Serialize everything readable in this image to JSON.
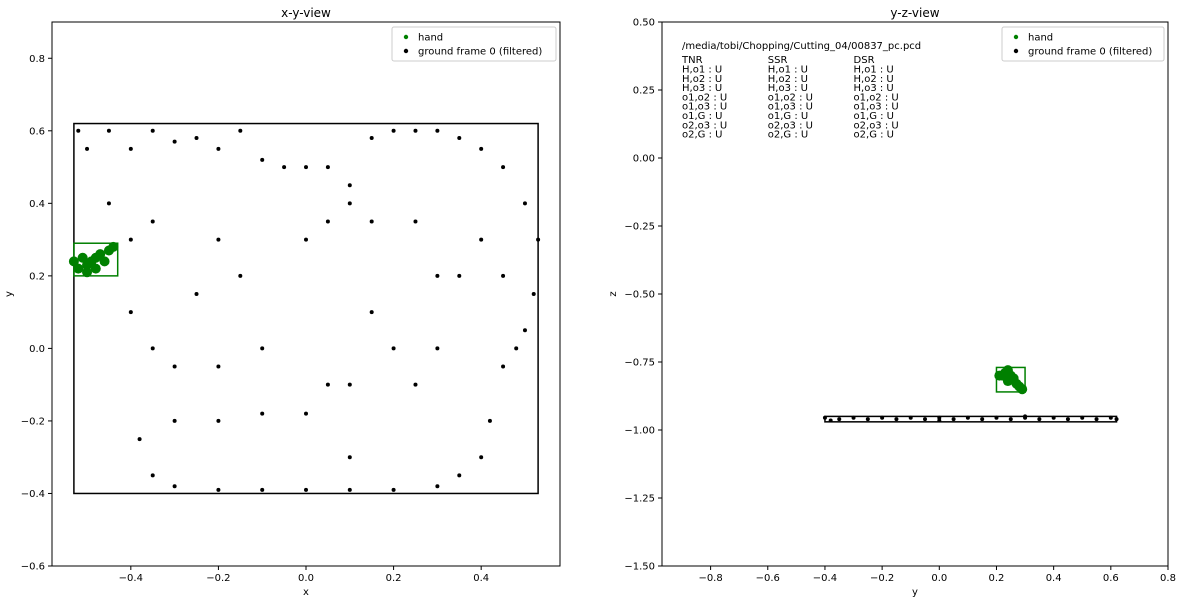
{
  "chart_data": [
    {
      "type": "scatter",
      "title": "x-y-view",
      "xlabel": "x",
      "ylabel": "y",
      "xlim": [
        -0.58,
        0.58
      ],
      "ylim": [
        -0.6,
        0.9
      ],
      "xticks": [
        -0.4,
        -0.2,
        0.0,
        0.2,
        0.4
      ],
      "xtick_labels": [
        "−0.4",
        "−0.2",
        "0.0",
        "0.2",
        "0.4"
      ],
      "yticks": [
        -0.6,
        -0.4,
        -0.2,
        0.0,
        0.2,
        0.4,
        0.6,
        0.8
      ],
      "ytick_labels": [
        "−0.6",
        "−0.4",
        "−0.2",
        "0.0",
        "0.2",
        "0.4",
        "0.6",
        "0.8"
      ],
      "legend_position": "top-right",
      "series": [
        {
          "name": "hand",
          "color": "#008000",
          "points": [
            [
              -0.53,
              0.24
            ],
            [
              -0.52,
              0.22
            ],
            [
              -0.51,
              0.25
            ],
            [
              -0.5,
              0.23
            ],
            [
              -0.49,
              0.24
            ],
            [
              -0.48,
              0.22
            ],
            [
              -0.47,
              0.26
            ],
            [
              -0.46,
              0.24
            ],
            [
              -0.45,
              0.27
            ],
            [
              -0.44,
              0.28
            ],
            [
              -0.5,
              0.21
            ],
            [
              -0.48,
              0.25
            ]
          ]
        },
        {
          "name": "ground frame 0 (filtered)",
          "color": "#000000",
          "points": [
            [
              -0.52,
              0.6
            ],
            [
              -0.5,
              0.55
            ],
            [
              -0.45,
              0.6
            ],
            [
              -0.4,
              0.55
            ],
            [
              -0.35,
              0.6
            ],
            [
              -0.3,
              0.57
            ],
            [
              -0.25,
              0.58
            ],
            [
              -0.2,
              0.55
            ],
            [
              -0.15,
              0.6
            ],
            [
              -0.1,
              0.52
            ],
            [
              -0.05,
              0.5
            ],
            [
              0.0,
              0.5
            ],
            [
              0.05,
              0.5
            ],
            [
              0.1,
              0.45
            ],
            [
              0.15,
              0.58
            ],
            [
              0.2,
              0.6
            ],
            [
              0.25,
              0.6
            ],
            [
              0.3,
              0.6
            ],
            [
              0.35,
              0.58
            ],
            [
              0.4,
              0.55
            ],
            [
              0.45,
              0.5
            ],
            [
              0.5,
              0.4
            ],
            [
              0.53,
              0.3
            ],
            [
              0.52,
              0.15
            ],
            [
              0.5,
              0.05
            ],
            [
              0.48,
              0.0
            ],
            [
              0.45,
              -0.05
            ],
            [
              0.42,
              -0.2
            ],
            [
              0.4,
              -0.3
            ],
            [
              0.35,
              -0.35
            ],
            [
              0.3,
              -0.38
            ],
            [
              0.2,
              -0.39
            ],
            [
              0.1,
              -0.39
            ],
            [
              0.0,
              -0.39
            ],
            [
              -0.1,
              -0.39
            ],
            [
              -0.2,
              -0.39
            ],
            [
              -0.3,
              -0.38
            ],
            [
              -0.35,
              -0.35
            ],
            [
              -0.38,
              -0.25
            ],
            [
              -0.3,
              -0.2
            ],
            [
              -0.2,
              -0.2
            ],
            [
              -0.1,
              -0.18
            ],
            [
              0.0,
              -0.18
            ],
            [
              0.05,
              -0.1
            ],
            [
              0.1,
              -0.1
            ],
            [
              -0.45,
              0.4
            ],
            [
              -0.4,
              0.3
            ],
            [
              -0.35,
              0.0
            ],
            [
              -0.3,
              -0.05
            ],
            [
              -0.2,
              -0.05
            ],
            [
              -0.1,
              0.0
            ],
            [
              0.0,
              0.3
            ],
            [
              0.05,
              0.35
            ],
            [
              0.1,
              0.4
            ],
            [
              0.15,
              0.35
            ],
            [
              0.25,
              0.35
            ],
            [
              0.3,
              0.2
            ],
            [
              0.35,
              0.2
            ],
            [
              0.4,
              0.3
            ],
            [
              0.45,
              0.2
            ],
            [
              0.3,
              0.0
            ],
            [
              0.25,
              -0.1
            ],
            [
              -0.2,
              0.3
            ],
            [
              -0.15,
              0.2
            ],
            [
              -0.25,
              0.15
            ],
            [
              -0.35,
              0.35
            ],
            [
              -0.4,
              0.1
            ],
            [
              0.15,
              0.1
            ],
            [
              0.2,
              0.0
            ],
            [
              0.1,
              -0.3
            ]
          ]
        }
      ],
      "rectangles": [
        {
          "color": "#000000",
          "x0": -0.53,
          "y0": -0.4,
          "x1": 0.53,
          "y1": 0.62
        },
        {
          "color": "#008000",
          "x0": -0.53,
          "y0": 0.2,
          "x1": -0.43,
          "y1": 0.29
        }
      ]
    },
    {
      "type": "scatter",
      "title": "y-z-view",
      "xlabel": "y",
      "ylabel": "z",
      "xlim": [
        -0.97,
        0.8
      ],
      "ylim": [
        -1.5,
        0.5
      ],
      "xticks": [
        -0.8,
        -0.6,
        -0.4,
        -0.2,
        0.0,
        0.2,
        0.4,
        0.6,
        0.8
      ],
      "xtick_labels": [
        "−0.8",
        "−0.6",
        "−0.4",
        "−0.2",
        "0.0",
        "0.2",
        "0.4",
        "0.6",
        "0.8"
      ],
      "yticks": [
        -1.5,
        -1.25,
        -1.0,
        -0.75,
        -0.5,
        -0.25,
        0.0,
        0.25,
        0.5
      ],
      "ytick_labels": [
        "−1.50",
        "−1.25",
        "−1.00",
        "−0.75",
        "−0.50",
        "−0.25",
        "0.00",
        "0.25",
        "0.50"
      ],
      "legend_position": "top-right",
      "series": [
        {
          "name": "hand",
          "color": "#008000",
          "points": [
            [
              0.22,
              -0.8
            ],
            [
              0.23,
              -0.79
            ],
            [
              0.24,
              -0.82
            ],
            [
              0.25,
              -0.8
            ],
            [
              0.26,
              -0.81
            ],
            [
              0.27,
              -0.83
            ],
            [
              0.28,
              -0.84
            ],
            [
              0.29,
              -0.85
            ],
            [
              0.21,
              -0.8
            ],
            [
              0.24,
              -0.78
            ]
          ]
        },
        {
          "name": "ground frame 0 (filtered)",
          "color": "#000000",
          "points": [
            [
              -0.4,
              -0.955
            ],
            [
              -0.35,
              -0.96
            ],
            [
              -0.3,
              -0.955
            ],
            [
              -0.25,
              -0.96
            ],
            [
              -0.2,
              -0.955
            ],
            [
              -0.15,
              -0.96
            ],
            [
              -0.1,
              -0.955
            ],
            [
              -0.05,
              -0.96
            ],
            [
              0.0,
              -0.955
            ],
            [
              0.05,
              -0.96
            ],
            [
              0.1,
              -0.955
            ],
            [
              0.15,
              -0.96
            ],
            [
              0.2,
              -0.955
            ],
            [
              0.25,
              -0.96
            ],
            [
              0.3,
              -0.955
            ],
            [
              0.35,
              -0.96
            ],
            [
              0.4,
              -0.955
            ],
            [
              0.45,
              -0.96
            ],
            [
              0.5,
              -0.955
            ],
            [
              0.55,
              -0.96
            ],
            [
              0.6,
              -0.955
            ],
            [
              0.62,
              -0.96
            ],
            [
              -0.38,
              -0.965
            ],
            [
              0.0,
              -0.965
            ],
            [
              0.3,
              -0.95
            ]
          ]
        }
      ],
      "rectangles": [
        {
          "color": "#000000",
          "x0": -0.4,
          "y0": -0.97,
          "x1": 0.62,
          "y1": -0.95
        },
        {
          "color": "#008000",
          "x0": 0.2,
          "y0": -0.86,
          "x1": 0.3,
          "y1": -0.77
        }
      ],
      "annotation_lines": [
        "/media/tobi/Chopping/Cutting_04/00837_pc.pcd"
      ],
      "annotation_table": {
        "columns": [
          "TNR",
          "SSR",
          "DSR"
        ],
        "rows": [
          [
            "H,o1  : U",
            "H,o1  : U",
            "H,o1  : U"
          ],
          [
            "H,o2  : U",
            "H,o2  : U",
            "H,o2  : U"
          ],
          [
            "H,o3  : U",
            "H,o3  : U",
            "H,o3  : U"
          ],
          [
            "o1,o2 : U",
            "o1,o2 : U",
            "o1,o2 : U"
          ],
          [
            "o1,o3 : U",
            "o1,o3 : U",
            "o1,o3 : U"
          ],
          [
            "o1,G  : U",
            "o1,G  : U",
            "o1,G  : U"
          ],
          [
            "o2,o3 : U",
            "o2,o3 : U",
            "o2,o3 : U"
          ],
          [
            "o2,G  : U",
            "o2,G  : U",
            "o2,G  : U"
          ]
        ]
      }
    }
  ]
}
